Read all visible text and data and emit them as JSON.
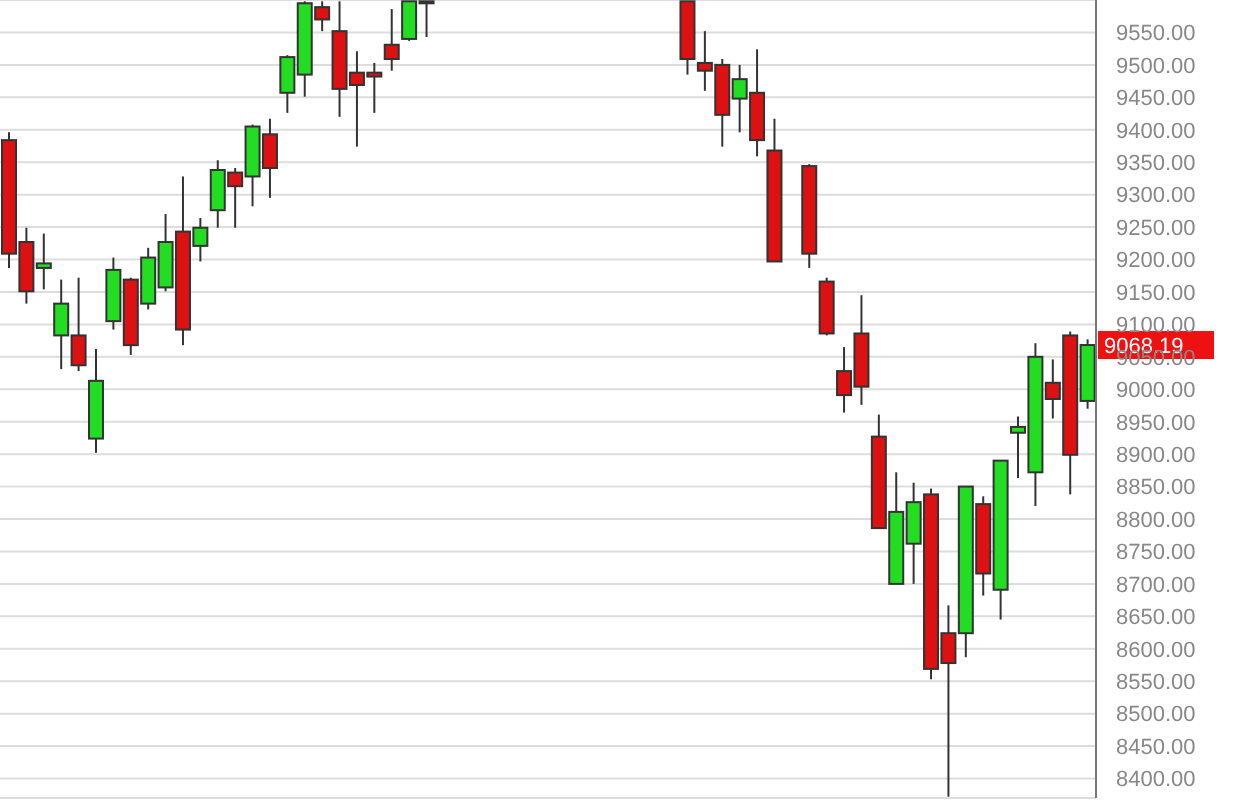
{
  "chart_data": {
    "type": "candlestick",
    "categories": [
      null,
      null,
      null,
      null,
      null,
      null,
      null,
      null,
      null,
      null,
      null,
      null,
      null,
      null,
      null,
      null,
      null,
      null,
      null,
      null,
      null,
      null,
      null,
      null,
      null,
      null,
      null,
      null,
      null,
      null,
      null,
      null,
      null,
      null,
      null,
      null,
      null,
      null,
      null,
      null,
      null,
      null,
      null,
      null,
      null,
      null,
      null,
      null,
      null,
      null,
      null,
      null,
      null,
      null,
      null,
      null,
      null,
      null,
      null,
      null,
      null,
      null,
      null
    ],
    "ohlc": [
      [
        9384,
        9396,
        9187,
        9209
      ],
      [
        9227,
        9249,
        9132,
        9151
      ],
      [
        9187,
        9240,
        9154,
        9194
      ],
      [
        9083,
        9169,
        9031,
        9132
      ],
      [
        9083,
        9172,
        9028,
        9037
      ],
      [
        8924,
        9062,
        8902,
        9013
      ],
      [
        9105,
        9203,
        9092,
        9184
      ],
      [
        9169,
        9172,
        9053,
        9068
      ],
      [
        9132,
        9218,
        9123,
        9203
      ],
      [
        9157,
        9270,
        9151,
        9227
      ],
      [
        9243,
        9328,
        9068,
        9092
      ],
      [
        9221,
        9264,
        9197,
        9249
      ],
      [
        9276,
        9353,
        9249,
        9338
      ],
      [
        9334,
        9341,
        9249,
        9313
      ],
      [
        9328,
        9408,
        9282,
        9405
      ],
      [
        9393,
        9417,
        9295,
        9341
      ],
      [
        9457,
        9515,
        9426,
        9512
      ],
      [
        9485,
        9598,
        9451,
        9595
      ],
      [
        9589,
        9598,
        9552,
        9570
      ],
      [
        9552,
        9598,
        9420,
        9463
      ],
      [
        9488,
        9521,
        9374,
        9469
      ],
      [
        9488,
        9503,
        9426,
        9482
      ],
      [
        9531,
        9586,
        9491,
        9509
      ],
      [
        9540,
        9598,
        9537,
        9598
      ],
      [
        9595,
        9598,
        9543,
        9598
      ],
      null,
      null,
      null,
      null,
      null,
      null,
      null,
      null,
      null,
      null,
      null,
      null,
      null,
      null,
      [
        9598,
        9598,
        9485,
        9509
      ],
      [
        9503,
        9552,
        9460,
        9491
      ],
      [
        9500,
        9509,
        9374,
        9423
      ],
      [
        9448,
        9500,
        9396,
        9478
      ],
      [
        9457,
        9524,
        9359,
        9384
      ],
      [
        9368,
        9417,
        9197,
        9197
      ],
      null,
      [
        9344,
        9347,
        9187,
        9209
      ],
      [
        9166,
        9172,
        9083,
        9086
      ],
      [
        9028,
        9065,
        8964,
        8991
      ],
      [
        9086,
        9145,
        8976,
        9004
      ],
      [
        8927,
        8961,
        8786,
        8786
      ],
      [
        8700,
        8872,
        8700,
        8811
      ],
      [
        8762,
        8856,
        8700,
        8826
      ],
      [
        8838,
        8847,
        8553,
        8569
      ],
      [
        8624,
        8667,
        8372,
        8578
      ],
      [
        8624,
        8850,
        8587,
        8850
      ],
      [
        8823,
        8835,
        8682,
        8716
      ],
      [
        8691,
        8890,
        8645,
        8890
      ],
      [
        8933,
        8958,
        8863,
        8942
      ],
      [
        8872,
        9071,
        8820,
        9050
      ],
      [
        9010,
        9046,
        8955,
        8985
      ],
      [
        9083,
        9089,
        8838,
        8899
      ],
      [
        8982,
        9077,
        8970,
        9068.19
      ]
    ],
    "colors": [
      "#dd1111",
      "#dd1111",
      "#22dd22",
      "#22dd22",
      "#dd1111",
      "#22dd22",
      "#22dd22",
      "#dd1111",
      "#22dd22",
      "#22dd22",
      "#dd1111",
      "#22dd22",
      "#22dd22",
      "#dd1111",
      "#22dd22",
      "#dd1111",
      "#22dd22",
      "#22dd22",
      "#dd1111",
      "#dd1111",
      "#dd1111",
      "#dd1111",
      "#dd1111",
      "#22dd22",
      "#22dd22",
      null,
      null,
      null,
      null,
      null,
      null,
      null,
      null,
      null,
      null,
      null,
      null,
      null,
      null,
      "#dd1111",
      "#dd1111",
      "#dd1111",
      "#22dd22",
      "#dd1111",
      "#dd1111",
      null,
      "#dd1111",
      "#dd1111",
      "#dd1111",
      "#dd1111",
      "#dd1111",
      "#22dd22",
      "#22dd22",
      "#dd1111",
      "#dd1111",
      "#22dd22",
      "#dd1111",
      "#22dd22",
      "#22dd22",
      "#22dd22",
      "#dd1111",
      "#dd1111",
      "#22dd22"
    ],
    "ylim": [
      8370,
      9600
    ],
    "yticks": [
      {
        "value": 8400,
        "label": "8400.00"
      },
      {
        "value": 8450,
        "label": "8450.00"
      },
      {
        "value": 8500,
        "label": "8500.00"
      },
      {
        "value": 8550,
        "label": "8550.00"
      },
      {
        "value": 8600,
        "label": "8600.00"
      },
      {
        "value": 8650,
        "label": "8650.00"
      },
      {
        "value": 8700,
        "label": "8700.00"
      },
      {
        "value": 8750,
        "label": "8750.00"
      },
      {
        "value": 8800,
        "label": "8800.00"
      },
      {
        "value": 8850,
        "label": "8850.00"
      },
      {
        "value": 8900,
        "label": "8900.00"
      },
      {
        "value": 8950,
        "label": "8950.00"
      },
      {
        "value": 9000,
        "label": "9000.00"
      },
      {
        "value": 9050,
        "label": "9050.00"
      },
      {
        "value": 9100,
        "label": "9100.00"
      },
      {
        "value": 9150,
        "label": "9150.00"
      },
      {
        "value": 9200,
        "label": "9200.00"
      },
      {
        "value": 9250,
        "label": "9250.00"
      },
      {
        "value": 9300,
        "label": "9300.00"
      },
      {
        "value": 9350,
        "label": "9350.00"
      },
      {
        "value": 9400,
        "label": "9400.00"
      },
      {
        "value": 9450,
        "label": "9450.00"
      },
      {
        "value": 9500,
        "label": "9500.00"
      },
      {
        "value": 9550,
        "label": "9550.00"
      }
    ],
    "grid": "y",
    "annotations": [
      "9068.19"
    ]
  }
}
